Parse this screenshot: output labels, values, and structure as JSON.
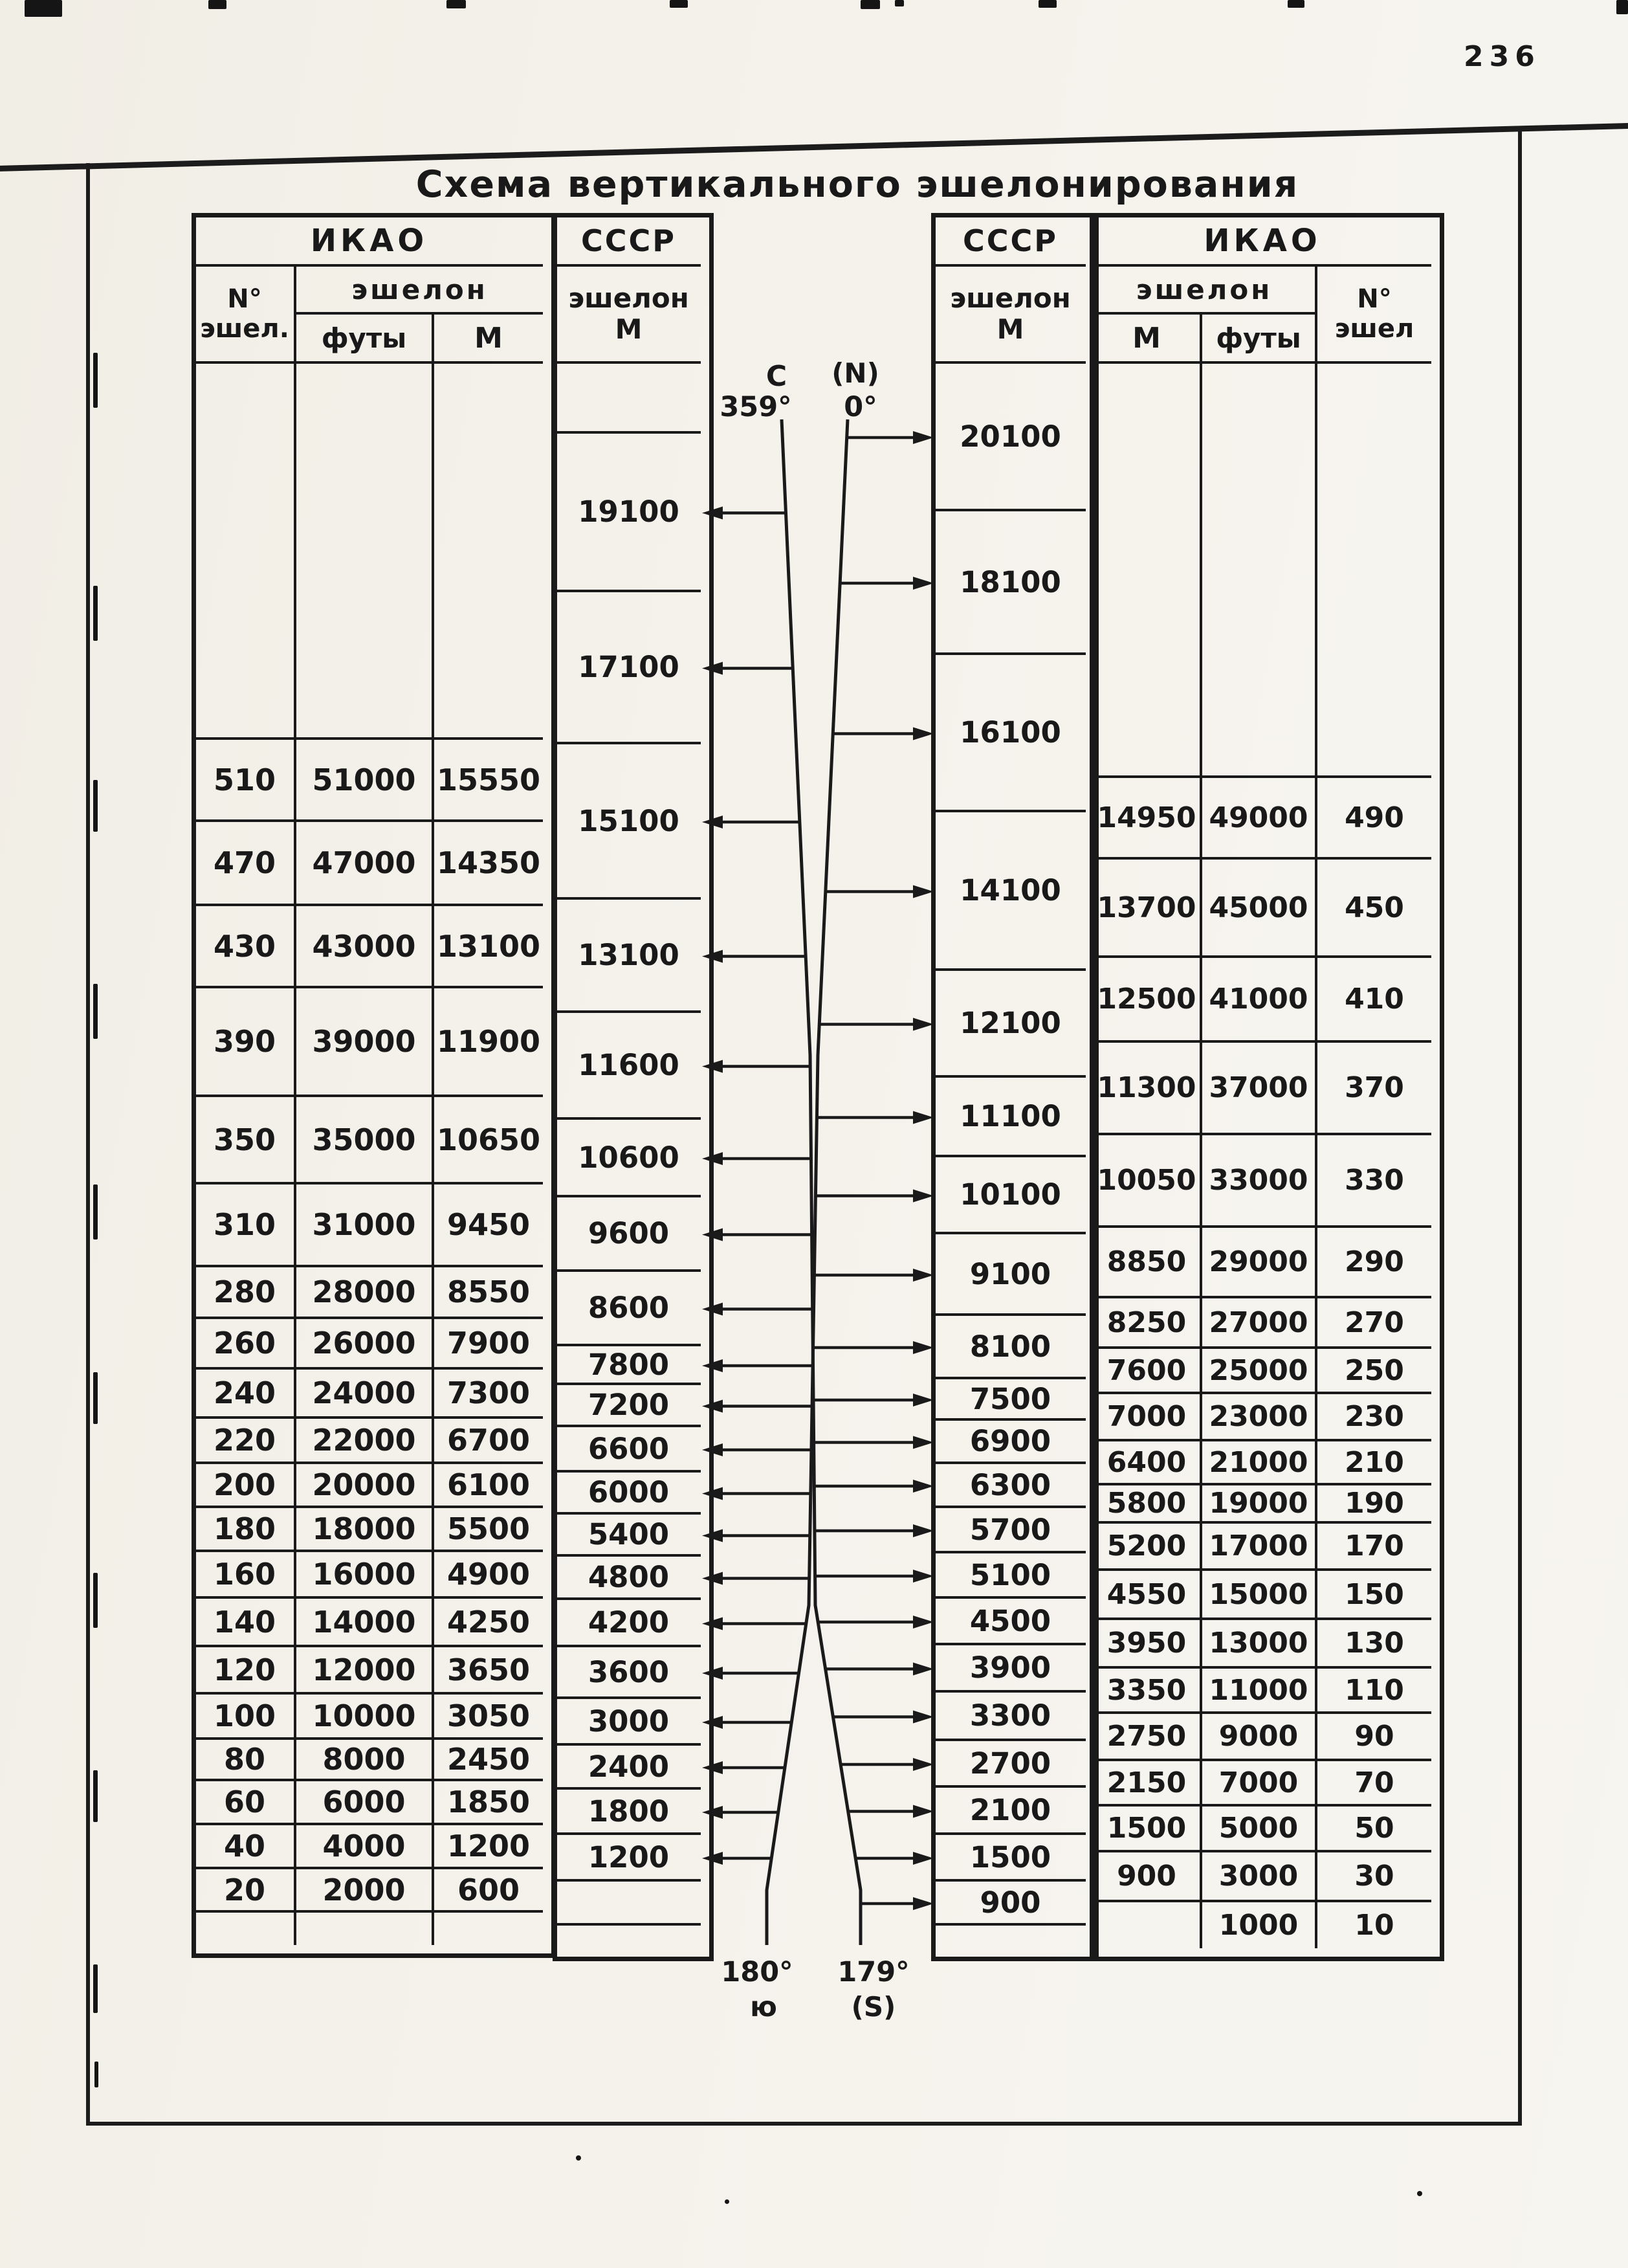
{
  "page": {
    "number": "236",
    "title": "Схема вертикального эшелонирования"
  },
  "left_table": {
    "org": "ИКАО",
    "no_header_l1": "N°",
    "no_header_l2": "эшел.",
    "group_header": "эшелон",
    "feet_header": "футы",
    "m_header": "М",
    "rows": [
      [
        "510",
        "51000",
        "15550"
      ],
      [
        "470",
        "47000",
        "14350"
      ],
      [
        "430",
        "43000",
        "13100"
      ],
      [
        "390",
        "39000",
        "11900"
      ],
      [
        "350",
        "35000",
        "10650"
      ],
      [
        "310",
        "31000",
        "9450"
      ],
      [
        "280",
        "28000",
        "8550"
      ],
      [
        "260",
        "26000",
        "7900"
      ],
      [
        "240",
        "24000",
        "7300"
      ],
      [
        "220",
        "22000",
        "6700"
      ],
      [
        "200",
        "20000",
        "6100"
      ],
      [
        "180",
        "18000",
        "5500"
      ],
      [
        "160",
        "16000",
        "4900"
      ],
      [
        "140",
        "14000",
        "4250"
      ],
      [
        "120",
        "12000",
        "3650"
      ],
      [
        "100",
        "10000",
        "3050"
      ],
      [
        "80",
        "8000",
        "2450"
      ],
      [
        "60",
        "6000",
        "1850"
      ],
      [
        "40",
        "4000",
        "1200"
      ],
      [
        "20",
        "2000",
        "600"
      ]
    ]
  },
  "ussr_left": {
    "org": "СССР",
    "header_l1": "эшелон",
    "header_l2": "М",
    "levels": [
      "",
      "19100",
      "17100",
      "15100",
      "13100",
      "11600",
      "10600",
      "9600",
      "8600",
      "7800",
      "7200",
      "6600",
      "6000",
      "5400",
      "4800",
      "4200",
      "3600",
      "3000",
      "2400",
      "1800",
      "1200",
      "",
      ""
    ]
  },
  "ussr_right": {
    "org": "СССР",
    "header_l1": "эшелон",
    "header_l2": "М",
    "levels": [
      "20100",
      "18100",
      "16100",
      "14100",
      "12100",
      "11100",
      "10100",
      "9100",
      "8100",
      "7500",
      "6900",
      "6300",
      "5700",
      "5100",
      "4500",
      "3900",
      "3300",
      "2700",
      "2100",
      "1500",
      "900",
      ""
    ]
  },
  "right_table": {
    "org": "ИКАО",
    "group_header": "эшелон",
    "m_header": "М",
    "feet_header": "футы",
    "no_header_l1": "N°",
    "no_header_l2": "эшел",
    "rows": [
      [
        "14950",
        "49000",
        "490"
      ],
      [
        "13700",
        "45000",
        "450"
      ],
      [
        "12500",
        "41000",
        "410"
      ],
      [
        "11300",
        "37000",
        "370"
      ],
      [
        "10050",
        "33000",
        "330"
      ],
      [
        "8850",
        "29000",
        "290"
      ],
      [
        "8250",
        "27000",
        "270"
      ],
      [
        "7600",
        "25000",
        "250"
      ],
      [
        "7000",
        "23000",
        "230"
      ],
      [
        "6400",
        "21000",
        "210"
      ],
      [
        "5800",
        "19000",
        "190"
      ],
      [
        "5200",
        "17000",
        "170"
      ],
      [
        "4550",
        "15000",
        "150"
      ],
      [
        "3950",
        "13000",
        "130"
      ],
      [
        "3350",
        "11000",
        "110"
      ],
      [
        "2750",
        "9000",
        "90"
      ],
      [
        "2150",
        "7000",
        "70"
      ],
      [
        "1500",
        "5000",
        "50"
      ],
      [
        "900",
        "3000",
        "30"
      ],
      [
        "",
        "1000",
        "10"
      ]
    ]
  },
  "compass": {
    "north_letter": "С",
    "north_paren": "(N)",
    "deg_359": "359°",
    "deg_0": "0°",
    "deg_180": "180°",
    "south_letter": "ю",
    "deg_179": "179°",
    "south_paren": "(S)"
  }
}
